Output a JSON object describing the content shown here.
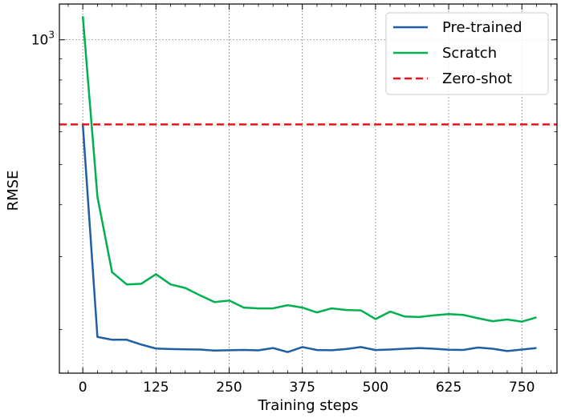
{
  "chart_data": {
    "type": "line",
    "title": "",
    "xlabel": "Training steps",
    "ylabel": "RMSE",
    "xscale": "linear",
    "yscale": "log",
    "xlim": [
      -40,
      810
    ],
    "ylim": [
      157,
      1220
    ],
    "xticks": [
      0,
      125,
      250,
      375,
      500,
      625,
      750
    ],
    "yticks_major": [
      {
        "value": 1000,
        "base": "10",
        "exp": "3"
      }
    ],
    "grid": true,
    "legend_position": "top-right",
    "x": [
      0,
      25,
      50,
      75,
      100,
      125,
      150,
      175,
      200,
      225,
      250,
      275,
      300,
      325,
      350,
      375,
      400,
      425,
      450,
      475,
      500,
      525,
      550,
      575,
      600,
      625,
      650,
      675,
      700,
      725,
      750,
      775
    ],
    "series": [
      {
        "name": "Pre-trained",
        "color": "#1f5fa6",
        "style": "solid",
        "values": [
          625,
          192,
          189,
          189,
          184,
          180,
          179.5,
          179.2,
          179,
          178,
          178.3,
          178.6,
          178.2,
          180.5,
          176.5,
          181.5,
          178.5,
          178.3,
          179.5,
          181.5,
          178.5,
          179,
          179.8,
          180.5,
          179.8,
          178.8,
          178.6,
          181,
          179.8,
          177.5,
          179,
          180.5
        ]
      },
      {
        "name": "Scratch",
        "color": "#00b050",
        "style": "solid",
        "values": [
          1140,
          418,
          275,
          257,
          258,
          272,
          257,
          252,
          242,
          233,
          235,
          226,
          225,
          225,
          229,
          226,
          220,
          225,
          223,
          222.5,
          212,
          221,
          215,
          214.5,
          216.5,
          218,
          217,
          213,
          209.5,
          211.5,
          209,
          214
        ]
      },
      {
        "name": "Zero-shot",
        "color": "#e8141b",
        "style": "dashed",
        "constant": 625
      }
    ]
  }
}
